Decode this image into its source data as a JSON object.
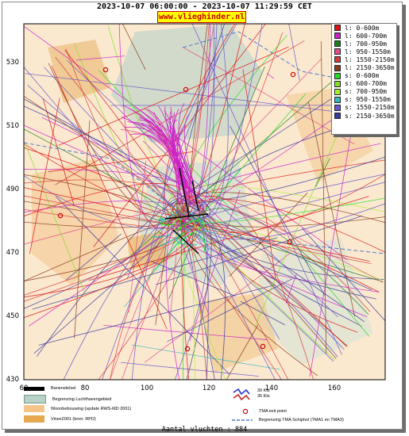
{
  "header": {
    "title": "2023-10-07 06:00:00 - 2023-10-07 11:29:59 CET",
    "site_link": "www.vlieghinder.nl"
  },
  "axes": {
    "x_ticks": [
      "60",
      "80",
      "100",
      "120",
      "140",
      "160"
    ],
    "y_ticks": [
      "530",
      "510",
      "490",
      "470",
      "450",
      "430"
    ]
  },
  "legend": {
    "items": [
      {
        "label": "l: 0-600m",
        "color": "#dd1111"
      },
      {
        "label": "l: 600-700m",
        "color": "#cc22cc"
      },
      {
        "label": "l: 700-950m",
        "color": "#1a7f1a"
      },
      {
        "label": "l: 950-1550m",
        "color": "#e24d8a"
      },
      {
        "label": "l: 1550-2150m",
        "color": "#d83a3a"
      },
      {
        "label": "l: 2150-3650m",
        "color": "#8b3b1c"
      },
      {
        "label": "s: 0-600m",
        "color": "#22dd22"
      },
      {
        "label": "s: 600-700m",
        "color": "#88dd22"
      },
      {
        "label": "s: 700-950m",
        "color": "#aaee33"
      },
      {
        "label": "s: 950-1550m",
        "color": "#33bbbb"
      },
      {
        "label": "s: 1550-2150m",
        "color": "#6655cc"
      },
      {
        "label": "s: 2150-3650m",
        "color": "#3a3a9e"
      }
    ]
  },
  "bottom_legend": {
    "runway": "Banenstelsel",
    "airport_boundary": "Begrenzing Luchthavengebied",
    "housing": "Woonbebouwing (update RWS-MD 2001)",
    "vinex": "Vinex2001 (bron: RPD)",
    "wind_30": "30 Kts",
    "wind_35": "35 Kts",
    "tma_exit": "TMA exit point",
    "tma_boundary": "Begrenzing TMA Schiphol  (TMA1 en TMA3)"
  },
  "footer": {
    "count_label": "Aantal vluchten : 884"
  }
}
